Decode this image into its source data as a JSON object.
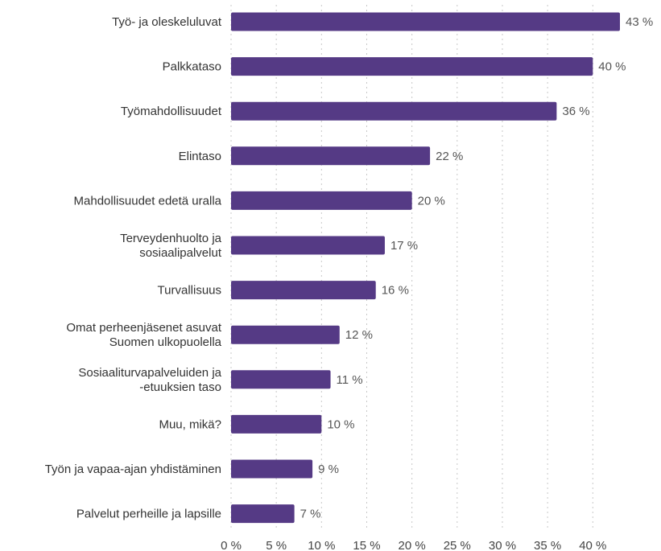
{
  "chart_data": {
    "type": "bar",
    "orientation": "horizontal",
    "categories": [
      [
        "Työ- ja oleskeluluvat"
      ],
      [
        "Palkkataso"
      ],
      [
        "Työmahdollisuudet"
      ],
      [
        "Elintaso"
      ],
      [
        "Mahdollisuudet edetä uralla"
      ],
      [
        "Terveydenhuolto ja",
        "sosiaalipalvelut"
      ],
      [
        "Turvallisuus"
      ],
      [
        "Omat perheenjäsenet asuvat",
        "Suomen ulkopuolella"
      ],
      [
        "Sosiaaliturvapalveluiden ja",
        "-etuuksien taso"
      ],
      [
        "Muu, mikä?"
      ],
      [
        "Työn ja vapaa-ajan yhdistäminen"
      ],
      [
        "Palvelut perheille ja lapsille"
      ]
    ],
    "values": [
      43,
      40,
      36,
      22,
      20,
      17,
      16,
      12,
      11,
      10,
      9,
      7
    ],
    "value_labels": [
      "43 %",
      "40 %",
      "36 %",
      "22 %",
      "20 %",
      "17 %",
      "16 %",
      "12 %",
      "11 %",
      "10 %",
      "9 %",
      "7 %"
    ],
    "xlim": [
      0,
      43
    ],
    "xticks": [
      0,
      5,
      10,
      15,
      20,
      25,
      30,
      35,
      40
    ],
    "xtick_labels": [
      "0 %",
      "5 %",
      "10 %",
      "15 %",
      "20 %",
      "25 %",
      "30 %",
      "35 %",
      "40 %"
    ],
    "grid": true,
    "bar_color": "#553a85",
    "title": "",
    "xlabel": "",
    "ylabel": ""
  }
}
